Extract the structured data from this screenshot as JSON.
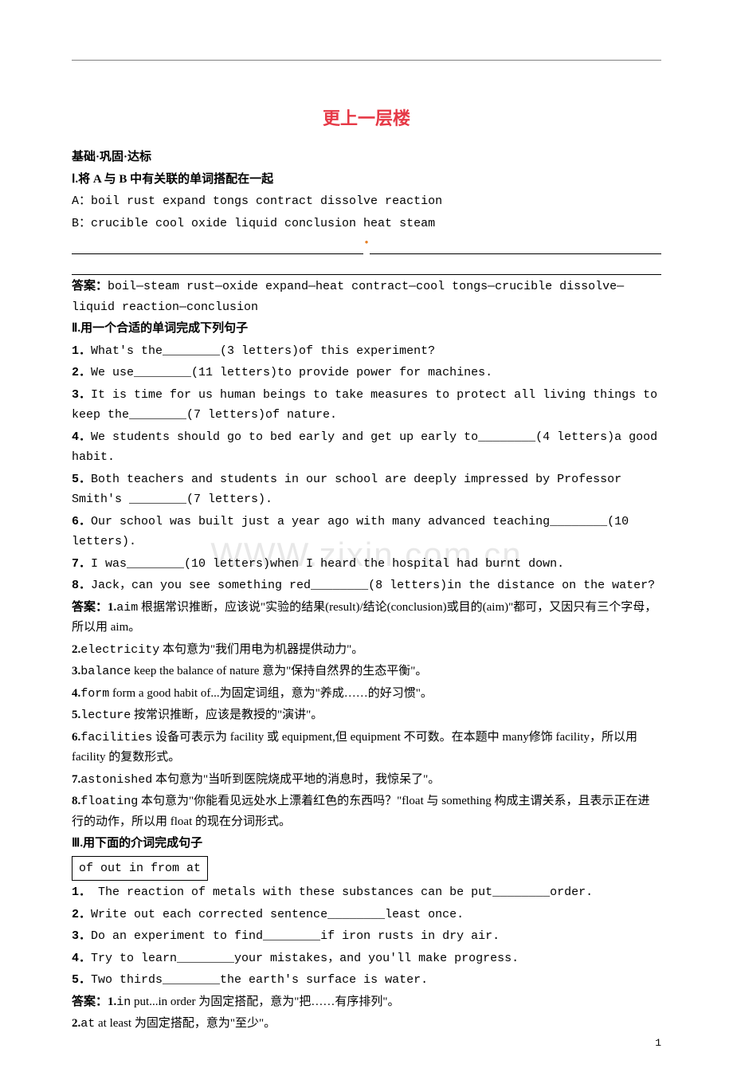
{
  "title": "更上一层楼",
  "section_heading": "基础·巩固·达标",
  "watermark": "WWW.zixin.com.cn",
  "page_number": "1",
  "part1": {
    "heading": "Ⅰ.将 A 与 B 中有关联的单词搭配在一起",
    "line_a": "A：boil  rust  expand  tongs  contract  dissolve  reaction",
    "line_b": "B：crucible  cool  oxide  liquid  conclusion  heat  steam",
    "answer_label": "答案：",
    "answer_text": "boil—steam  rust—oxide  expand—heat  contract—cool  tongs—crucible  dissolve—liquid  reaction—conclusion"
  },
  "part2": {
    "heading": "Ⅱ.用一个合适的单词完成下列句子",
    "items": [
      {
        "num": "1．",
        "text": "What's the________(3 letters)of this experiment?"
      },
      {
        "num": "2．",
        "text": "We use________(11 letters)to provide power for machines."
      },
      {
        "num": "3．",
        "text": "It is time for us human beings to take measures to protect all living things to keep the________(7 letters)of nature."
      },
      {
        "num": "4．",
        "text": "We students should go to bed early and get up early to________(4 letters)a good habit."
      },
      {
        "num": "5．",
        "text": "Both teachers and students in our school are deeply impressed by Professor Smith's ________(7 letters)."
      },
      {
        "num": "6．",
        "text": "Our school was built just a year ago with many advanced teaching________(10 letters)."
      },
      {
        "num": "7．",
        "text": "I was________(10 letters)when I heard the hospital had burnt down."
      },
      {
        "num": "8．",
        "text": "Jack，can you see something red________(8 letters)in the distance on the water?"
      }
    ],
    "answers": [
      {
        "num": "答案：1.",
        "word": "aim",
        "explain": "  根据常识推断，应该说\"实验的结果(result)/结论(conclusion)或目的(aim)\"都可，又因只有三个字母，所以用 aim。"
      },
      {
        "num": "2.",
        "word": "electricity",
        "explain": "  本句意为\"我们用电为机器提供动力\"。"
      },
      {
        "num": "3.",
        "word": "balance",
        "explain": "  keep the balance of nature 意为\"保持自然界的生态平衡\"。"
      },
      {
        "num": "4.",
        "word": "form",
        "explain": "  form a good habit of...为固定词组，意为\"养成……的好习惯\"。"
      },
      {
        "num": "5.",
        "word": "lecture",
        "explain": "  按常识推断，应该是教授的\"演讲\"。"
      },
      {
        "num": "6.",
        "word": "facilities",
        "explain": "  设备可表示为 facility 或 equipment,但 equipment 不可数。在本题中 many修饰 facility，所以用 facility 的复数形式。"
      },
      {
        "num": "7.",
        "word": "astonished",
        "explain": "  本句意为\"当听到医院烧成平地的消息时，我惊呆了\"。"
      },
      {
        "num": "8.",
        "word": "floating",
        "explain": "  本句意为\"你能看见远处水上漂着红色的东西吗？\"float 与 something 构成主谓关系，且表示正在进行的动作，所以用 float 的现在分词形式。"
      }
    ]
  },
  "part3": {
    "heading": "Ⅲ.用下面的介词完成句子",
    "box_content": "of  out  in  from  at",
    "items": [
      {
        "num": "1．",
        "text": " The reaction of metals with these substances can be put________order."
      },
      {
        "num": "2．",
        "text": "Write out each corrected sentence________least once."
      },
      {
        "num": "3．",
        "text": "Do an experiment to find________if iron rusts in dry air."
      },
      {
        "num": "4．",
        "text": "Try to learn________your mistakes，and you'll make progress."
      },
      {
        "num": "5．",
        "text": "Two thirds________the earth's surface is water."
      }
    ],
    "answers": [
      {
        "num": "答案：1.",
        "word": "in",
        "explain": "  put...in order 为固定搭配，意为\"把……有序排列\"。"
      },
      {
        "num": "2.",
        "word": "at",
        "explain": "  at least 为固定搭配，意为\"至少\"。"
      }
    ]
  }
}
